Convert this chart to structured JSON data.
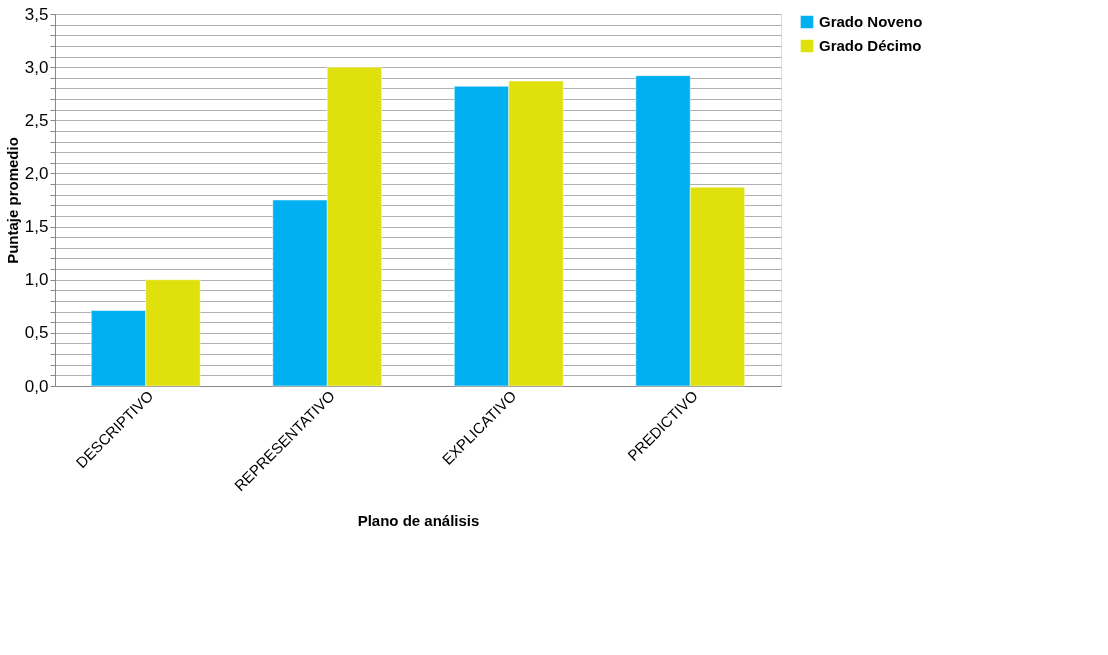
{
  "chart_data": {
    "type": "bar",
    "xlabel": "Plano de análisis",
    "ylabel": "Puntaje promedio",
    "categories": [
      "DESCRIPTIVO",
      "REPRESENTATIVO",
      "EXPLICATIVO",
      "PREDICTIVO"
    ],
    "series": [
      {
        "name": "Grado Noveno",
        "color": "#00b0f0",
        "values": [
          0.71,
          1.75,
          2.82,
          2.92
        ]
      },
      {
        "name": "Grado Décimo",
        "color": "#e0e00c",
        "values": [
          1.0,
          3.0,
          2.87,
          1.87
        ]
      }
    ],
    "ylim": [
      0,
      3.5
    ],
    "yticks": [
      {
        "value": 0,
        "label": "0,0"
      },
      {
        "value": 0.1,
        "label": null
      },
      {
        "value": 0.2,
        "label": null
      },
      {
        "value": 0.3,
        "label": null
      },
      {
        "value": 0.4,
        "label": null
      },
      {
        "value": 0.5,
        "label": "0,5"
      },
      {
        "value": 0.6,
        "label": null
      },
      {
        "value": 0.7,
        "label": null
      },
      {
        "value": 0.8,
        "label": null
      },
      {
        "value": 0.9,
        "label": null
      },
      {
        "value": 1.0,
        "label": "1,0"
      },
      {
        "value": 1.1,
        "label": null
      },
      {
        "value": 1.2,
        "label": null
      },
      {
        "value": 1.3,
        "label": null
      },
      {
        "value": 1.4,
        "label": null
      },
      {
        "value": 1.5,
        "label": "1,5"
      },
      {
        "value": 1.6,
        "label": null
      },
      {
        "value": 1.7,
        "label": null
      },
      {
        "value": 1.8,
        "label": null
      },
      {
        "value": 1.9,
        "label": null
      },
      {
        "value": 2.0,
        "label": "2,0"
      },
      {
        "value": 2.1,
        "label": null
      },
      {
        "value": 2.2,
        "label": null
      },
      {
        "value": 2.3,
        "label": null
      },
      {
        "value": 2.4,
        "label": null
      },
      {
        "value": 2.5,
        "label": "2,5"
      },
      {
        "value": 2.6,
        "label": null
      },
      {
        "value": 2.7,
        "label": null
      },
      {
        "value": 2.8,
        "label": null
      },
      {
        "value": 2.9,
        "label": null
      },
      {
        "value": 3.0,
        "label": "3,0"
      },
      {
        "value": 3.1,
        "label": null
      },
      {
        "value": 3.2,
        "label": null
      },
      {
        "value": 3.3,
        "label": null
      },
      {
        "value": 3.4,
        "label": null
      },
      {
        "value": 3.5,
        "label": "3,5"
      }
    ],
    "grid": "y",
    "legend": "right"
  }
}
